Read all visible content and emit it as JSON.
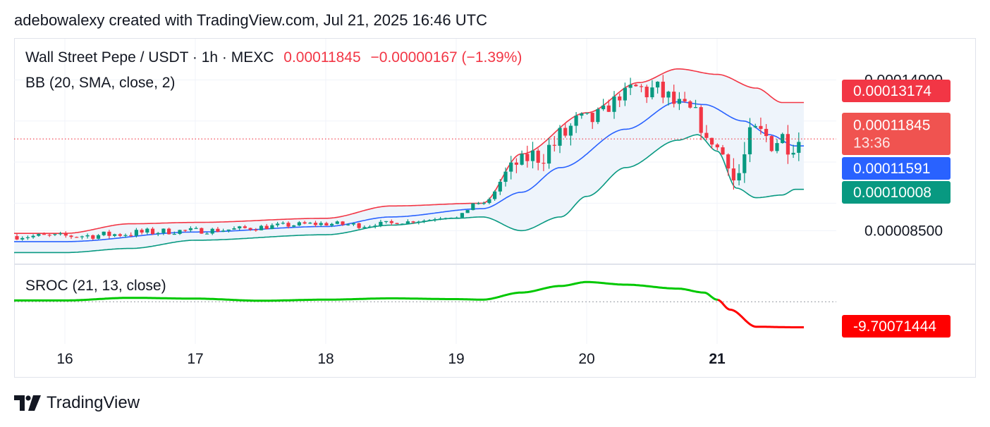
{
  "attribution": "adebowalexy created with TradingView.com, Jul 21, 2025 16:46 UTC",
  "brand": {
    "name": "TradingView",
    "logo_icon": "tradingview-logo-icon"
  },
  "colors": {
    "up": "#089981",
    "down": "#f23645",
    "bb_upper": "#f23645",
    "bb_basis": "#2962ff",
    "bb_lower": "#089981",
    "bb_fill": "#eef4fb",
    "sroc_up": "#00c800",
    "sroc_down": "#ff0000",
    "grid": "#f0f3fa",
    "text": "#131722"
  },
  "legend": {
    "symbol": "Wall Street Pepe / USDT · 1h · MEXC",
    "last": "0.00011845",
    "change": "−0.00000167 (−1.39%)",
    "bb": "BB (20, SMA, close, 2)",
    "sroc": "SROC (21, 13, close)"
  },
  "chart_data": [
    {
      "type": "candlestick",
      "symbol": "Wall Street Pepe / USDT",
      "interval": "1h",
      "exchange": "MEXC",
      "x_ticks": [
        "16",
        "17",
        "18",
        "19",
        "20",
        "21"
      ],
      "x_ticks_bold": [
        "21"
      ],
      "y_ticks": [
        "0.00014000",
        "0.00008500"
      ],
      "ylim": [
        7.3e-05,
        0.000155
      ],
      "price_labels": {
        "bb_upper": "0.00013174",
        "last": "0.00011845",
        "countdown": "13:36",
        "bb_basis": "0.00011591",
        "bb_lower": "0.00010008"
      },
      "series_keypoints": {
        "close": [
          [
            0,
            8.3e-05
          ],
          [
            1,
            8.5e-05
          ],
          [
            2,
            8.75e-05
          ],
          [
            2.3,
            8.7e-05
          ],
          [
            3,
            8.95e-05
          ],
          [
            3.3,
            0.000106
          ],
          [
            3.6,
            0.0001125
          ],
          [
            4,
            0.000125
          ],
          [
            4.3,
            0.000137
          ],
          [
            4.5,
            0.000136
          ],
          [
            4.8,
            0.000128
          ],
          [
            5,
            0.0001085
          ],
          [
            5.1,
            0.000101
          ],
          [
            5.3,
            0.000119
          ],
          [
            5.6,
            0.00011845
          ]
        ],
        "bb_upper": [
          [
            0,
            8.4e-05
          ],
          [
            0.5,
            8.75e-05
          ],
          [
            1,
            8.8e-05
          ],
          [
            2,
            8.95e-05
          ],
          [
            2.5,
            9.4e-05
          ],
          [
            3.2,
            9.5e-05
          ],
          [
            3.5,
            0.000113
          ],
          [
            4,
            0.000128
          ],
          [
            4.4,
            0.000139
          ],
          [
            4.7,
            0.000144
          ],
          [
            5,
            0.000142
          ],
          [
            5.3,
            0.000137
          ],
          [
            5.5,
            0.00013174
          ]
        ],
        "bb_basis": [
          [
            0,
            8.1e-05
          ],
          [
            1,
            8.45e-05
          ],
          [
            2,
            8.65e-05
          ],
          [
            2.5,
            9e-05
          ],
          [
            3.2,
            9.3e-05
          ],
          [
            3.5,
            9.9e-05
          ],
          [
            3.8,
            0.000108
          ],
          [
            4.3,
            0.000122
          ],
          [
            4.7,
            0.000132
          ],
          [
            4.9,
            0.000131
          ],
          [
            5.2,
            0.000125
          ],
          [
            5.4,
            0.00012
          ],
          [
            5.6,
            0.00011591
          ]
        ],
        "bb_lower": [
          [
            0,
            7.7e-05
          ],
          [
            0.5,
            7.85e-05
          ],
          [
            1,
            8.15e-05
          ],
          [
            2,
            8.35e-05
          ],
          [
            2.5,
            8.7e-05
          ],
          [
            3,
            8.95e-05
          ],
          [
            3.2,
            9e-05
          ],
          [
            3.5,
            8.5e-05
          ],
          [
            3.8,
            9e-05
          ],
          [
            4,
            9.75e-05
          ],
          [
            4.3,
            0.000108
          ],
          [
            4.7,
            0.000118
          ],
          [
            4.85,
            0.00012
          ],
          [
            5,
            0.000114
          ],
          [
            5.15,
            0.0001005
          ],
          [
            5.3,
            9.7e-05
          ],
          [
            5.5,
            9.8e-05
          ],
          [
            5.6,
            0.00010008
          ]
        ]
      }
    },
    {
      "type": "line",
      "name": "SROC (21, 13, close)",
      "value_label": "-9.70071444",
      "series_keypoints": [
        [
          0,
          0.5
        ],
        [
          0.5,
          1.5
        ],
        [
          1,
          1.2
        ],
        [
          1.5,
          0.4
        ],
        [
          2,
          0.8
        ],
        [
          2.5,
          1.3
        ],
        [
          3,
          1.0
        ],
        [
          3.2,
          0.8
        ],
        [
          3.5,
          3.5
        ],
        [
          3.8,
          6.0
        ],
        [
          4,
          7.5
        ],
        [
          4.3,
          6.5
        ],
        [
          4.7,
          5.0
        ],
        [
          4.9,
          3.5
        ],
        [
          5,
          0.8
        ],
        [
          5.1,
          -3.0
        ],
        [
          5.3,
          -9.5
        ],
        [
          5.6,
          -9.7
        ]
      ],
      "ylim": [
        -16,
        14
      ]
    }
  ]
}
